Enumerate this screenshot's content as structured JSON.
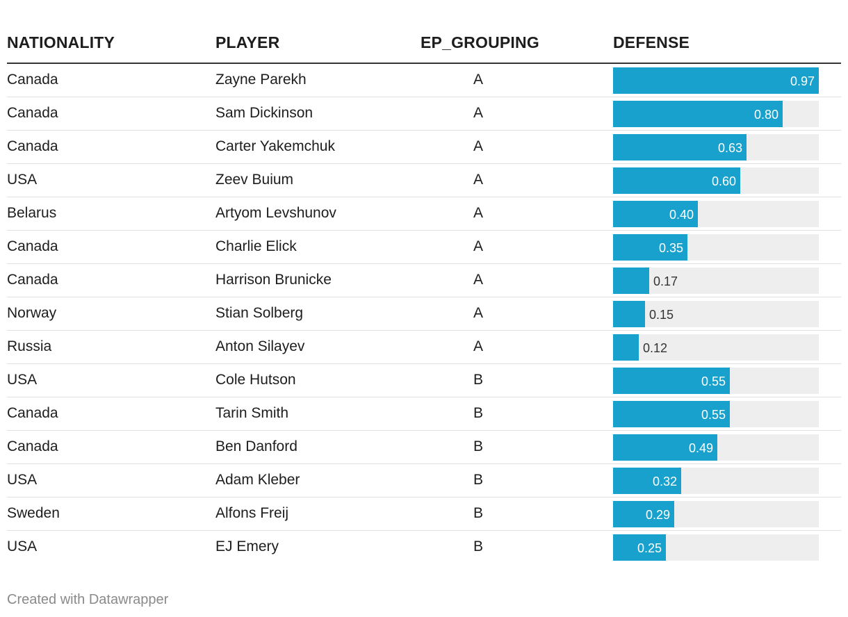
{
  "chart_data": {
    "type": "table",
    "columns": [
      "NATIONALITY",
      "PLAYER",
      "EP_GROUPING",
      "DEFENSE"
    ],
    "defense_range": [
      0,
      0.97
    ],
    "bar_color": "#18a1cd",
    "track_color": "#eeeeee",
    "rows": [
      {
        "nationality": "Canada",
        "player": "Zayne Parekh",
        "ep_grouping": "A",
        "defense": 0.97,
        "defense_label": "0.97"
      },
      {
        "nationality": "Canada",
        "player": "Sam Dickinson",
        "ep_grouping": "A",
        "defense": 0.8,
        "defense_label": "0.80"
      },
      {
        "nationality": "Canada",
        "player": "Carter Yakemchuk",
        "ep_grouping": "A",
        "defense": 0.63,
        "defense_label": "0.63"
      },
      {
        "nationality": "USA",
        "player": "Zeev Buium",
        "ep_grouping": "A",
        "defense": 0.6,
        "defense_label": "0.60"
      },
      {
        "nationality": "Belarus",
        "player": "Artyom Levshunov",
        "ep_grouping": "A",
        "defense": 0.4,
        "defense_label": "0.40"
      },
      {
        "nationality": "Canada",
        "player": "Charlie Elick",
        "ep_grouping": "A",
        "defense": 0.35,
        "defense_label": "0.35"
      },
      {
        "nationality": "Canada",
        "player": "Harrison Brunicke",
        "ep_grouping": "A",
        "defense": 0.17,
        "defense_label": "0.17"
      },
      {
        "nationality": "Norway",
        "player": "Stian Solberg",
        "ep_grouping": "A",
        "defense": 0.15,
        "defense_label": "0.15"
      },
      {
        "nationality": "Russia",
        "player": "Anton Silayev",
        "ep_grouping": "A",
        "defense": 0.12,
        "defense_label": "0.12"
      },
      {
        "nationality": "USA",
        "player": "Cole Hutson",
        "ep_grouping": "B",
        "defense": 0.55,
        "defense_label": "0.55"
      },
      {
        "nationality": "Canada",
        "player": "Tarin Smith",
        "ep_grouping": "B",
        "defense": 0.55,
        "defense_label": "0.55"
      },
      {
        "nationality": "Canada",
        "player": "Ben Danford",
        "ep_grouping": "B",
        "defense": 0.49,
        "defense_label": "0.49"
      },
      {
        "nationality": "USA",
        "player": "Adam Kleber",
        "ep_grouping": "B",
        "defense": 0.32,
        "defense_label": "0.32"
      },
      {
        "nationality": "Sweden",
        "player": "Alfons Freij",
        "ep_grouping": "B",
        "defense": 0.29,
        "defense_label": "0.29"
      },
      {
        "nationality": "USA",
        "player": "EJ Emery",
        "ep_grouping": "B",
        "defense": 0.25,
        "defense_label": "0.25"
      }
    ]
  },
  "footer": {
    "credit": "Created with Datawrapper"
  }
}
